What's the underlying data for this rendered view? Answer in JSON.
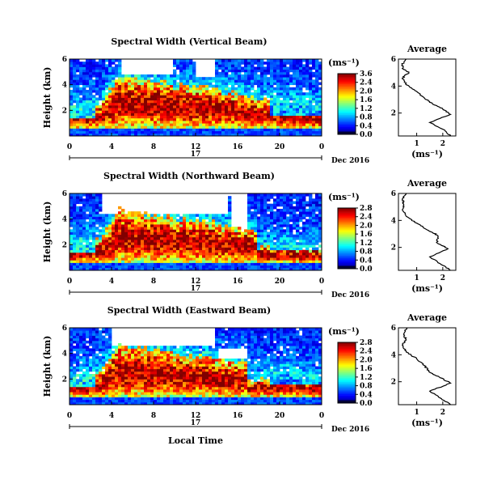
{
  "chart_data": [
    {
      "type": "heatmap",
      "title": "Spectral Width (Vertical Beam)",
      "ylabel": "Height (km)",
      "x_ticks": [
        "0",
        "4",
        "8",
        "12",
        "16",
        "20",
        "0"
      ],
      "y_ticks": [
        "2",
        "4",
        "6"
      ],
      "date_day": "17",
      "date_label": "Dec 2016",
      "xlim": [
        0,
        24
      ],
      "ylim": [
        0,
        6
      ],
      "colorbar": {
        "units": "(ms⁻¹)",
        "ticks": [
          "3.6",
          "2.4",
          "2.0",
          "1.6",
          "1.2",
          "0.8",
          "0.4",
          "0.0"
        ],
        "range": [
          0,
          3.6
        ]
      },
      "average_profile": {
        "title": "Average",
        "xlabel": "(ms⁻¹)",
        "x_ticks": [
          "1",
          "2"
        ],
        "y_ticks": [
          "2",
          "4",
          "6"
        ],
        "xlim": [
          0.3,
          2.5
        ],
        "ylim": [
          0.3,
          6
        ],
        "points": [
          [
            2.3,
            0.3
          ],
          [
            2.0,
            0.8
          ],
          [
            1.5,
            1.3
          ],
          [
            2.3,
            1.9
          ],
          [
            2.0,
            2.3
          ],
          [
            1.6,
            2.7
          ],
          [
            1.3,
            3.1
          ],
          [
            1.0,
            3.6
          ],
          [
            0.6,
            4.1
          ],
          [
            0.45,
            4.6
          ],
          [
            0.7,
            5.0
          ],
          [
            0.45,
            5.3
          ],
          [
            0.45,
            5.6
          ],
          [
            0.6,
            6.0
          ]
        ]
      }
    },
    {
      "type": "heatmap",
      "title": "Spectral Width (Northward Beam)",
      "ylabel": "Height (km)",
      "x_ticks": [
        "0",
        "4",
        "8",
        "12",
        "16",
        "20",
        "0"
      ],
      "y_ticks": [
        "2",
        "4",
        "6"
      ],
      "date_day": "17",
      "date_label": "Dec 2016",
      "xlim": [
        0,
        24
      ],
      "ylim": [
        0,
        6
      ],
      "colorbar": {
        "units": "(ms⁻¹)",
        "ticks": [
          "2.8",
          "2.4",
          "2.0",
          "1.6",
          "1.2",
          "0.8",
          "0.4",
          "0.0"
        ],
        "range": [
          0,
          2.8
        ]
      },
      "average_profile": {
        "title": "Average",
        "xlabel": "(ms⁻¹)",
        "x_ticks": [
          "1",
          "2"
        ],
        "y_ticks": [
          "2",
          "4",
          "6"
        ],
        "xlim": [
          0.3,
          2.5
        ],
        "ylim": [
          0.3,
          6
        ],
        "points": [
          [
            2.3,
            0.3
          ],
          [
            1.9,
            0.8
          ],
          [
            1.5,
            1.3
          ],
          [
            2.2,
            1.9
          ],
          [
            1.8,
            2.3
          ],
          [
            1.8,
            2.9
          ],
          [
            1.4,
            3.3
          ],
          [
            1.0,
            3.8
          ],
          [
            0.6,
            4.3
          ],
          [
            0.45,
            4.8
          ],
          [
            0.5,
            5.2
          ],
          [
            0.45,
            5.6
          ],
          [
            0.6,
            6.0
          ]
        ]
      }
    },
    {
      "type": "heatmap",
      "title": "Spectral Width (Eastward Beam)",
      "ylabel": "Height (km)",
      "xlabel": "Local Time",
      "x_ticks": [
        "0",
        "4",
        "8",
        "12",
        "16",
        "20",
        "0"
      ],
      "y_ticks": [
        "2",
        "4",
        "6"
      ],
      "date_day": "17",
      "date_label": "Dec 2016",
      "xlim": [
        0,
        24
      ],
      "ylim": [
        0,
        6
      ],
      "colorbar": {
        "units": "(ms⁻¹)",
        "ticks": [
          "2.8",
          "2.4",
          "2.0",
          "1.6",
          "1.2",
          "0.8",
          "0.4",
          "0.0"
        ],
        "range": [
          0,
          2.8
        ]
      },
      "average_profile": {
        "title": "Average",
        "xlabel": "(ms⁻¹)",
        "x_ticks": [
          "1",
          "2"
        ],
        "y_ticks": [
          "2",
          "4",
          "6"
        ],
        "xlim": [
          0.3,
          2.5
        ],
        "ylim": [
          0.3,
          6
        ],
        "points": [
          [
            2.3,
            0.3
          ],
          [
            1.9,
            0.8
          ],
          [
            1.5,
            1.3
          ],
          [
            2.3,
            1.9
          ],
          [
            1.9,
            2.3
          ],
          [
            1.5,
            2.7
          ],
          [
            1.3,
            3.2
          ],
          [
            1.0,
            3.7
          ],
          [
            0.6,
            4.2
          ],
          [
            0.45,
            4.7
          ],
          [
            0.6,
            5.1
          ],
          [
            0.5,
            5.5
          ],
          [
            0.6,
            6.0
          ]
        ]
      }
    }
  ]
}
